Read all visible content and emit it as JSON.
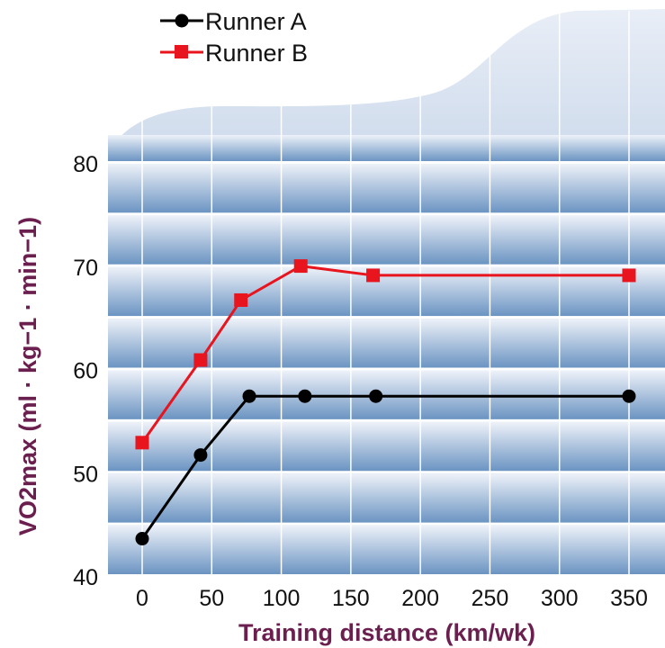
{
  "chart_data": {
    "type": "line",
    "xlabel": "Training distance (km/wk)",
    "ylabel": "VO2max (ml · kg−1 · min−1)",
    "xlim": [
      0,
      350
    ],
    "ylim": [
      40,
      80
    ],
    "xticks": [
      "0",
      "50",
      "100",
      "150",
      "200",
      "250",
      "300",
      "350"
    ],
    "yticks": [
      "40",
      "50",
      "60",
      "70",
      "80"
    ],
    "grid": true,
    "legend_position": "top-left",
    "series": [
      {
        "name": "Runner A",
        "color": "#000000",
        "marker": "circle",
        "x": [
          0,
          42,
          77,
          117,
          168,
          350
        ],
        "y": [
          43.7,
          51.8,
          57.5,
          57.5,
          57.5,
          57.5
        ]
      },
      {
        "name": "Runner B",
        "color": "#e8141e",
        "marker": "square",
        "x": [
          0,
          42,
          71,
          114,
          166,
          350
        ],
        "y": [
          53.0,
          61.0,
          66.8,
          70.1,
          69.2,
          69.2
        ]
      }
    ]
  }
}
